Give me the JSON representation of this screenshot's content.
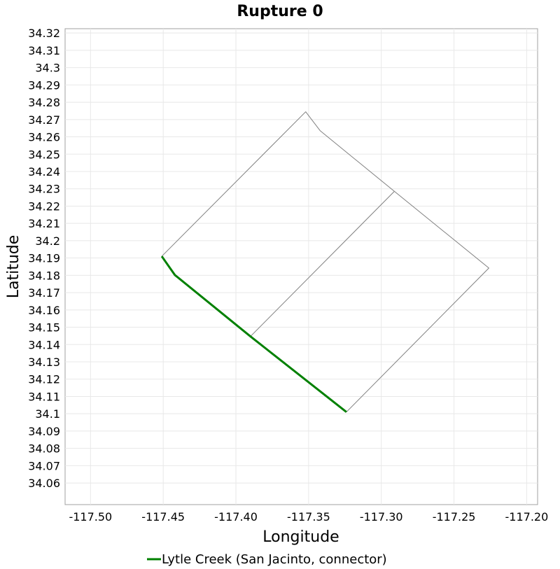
{
  "chart_data": {
    "type": "line",
    "title": "Rupture 0",
    "xlabel": "Longitude",
    "ylabel": "Latitude",
    "xlim": [
      -117.5175,
      -117.1925
    ],
    "ylim": [
      34.0475,
      34.3225
    ],
    "x_ticks": [
      -117.5,
      -117.45,
      -117.4,
      -117.35,
      -117.3,
      -117.25,
      -117.2
    ],
    "x_tick_labels": [
      "-117.50",
      "-117.45",
      "-117.40",
      "-117.35",
      "-117.30",
      "-117.25",
      "-117.20"
    ],
    "y_ticks": [
      34.06,
      34.07,
      34.08,
      34.09,
      34.1,
      34.11,
      34.12,
      34.13,
      34.14,
      34.15,
      34.16,
      34.17,
      34.18,
      34.19,
      34.2,
      34.21,
      34.22,
      34.23,
      34.24,
      34.25,
      34.26,
      34.27,
      34.28,
      34.29,
      34.3,
      34.31,
      34.32
    ],
    "y_tick_labels": [
      "34.06",
      "34.07",
      "34.08",
      "34.09",
      "34.1",
      "34.11",
      "34.12",
      "34.13",
      "34.14",
      "34.15",
      "34.16",
      "34.17",
      "34.18",
      "34.19",
      "34.2",
      "34.21",
      "34.22",
      "34.23",
      "34.24",
      "34.25",
      "34.26",
      "34.27",
      "34.28",
      "34.29",
      "34.3",
      "34.31",
      "34.32"
    ],
    "grid": true,
    "legend_position": "bottom",
    "series": [
      {
        "color": "#808080",
        "in_legend": false,
        "x": [
          -117.451,
          -117.352,
          -117.342,
          -117.291,
          -117.226,
          -117.324
        ],
        "y": [
          34.191,
          34.2745,
          34.2635,
          34.2285,
          34.1842,
          34.101
        ]
      },
      {
        "color": "#808080",
        "in_legend": false,
        "x": [
          -117.291,
          -117.39
        ],
        "y": [
          34.2285,
          34.1447
        ]
      },
      {
        "name": "Lytle Creek (San Jacinto, connector)",
        "color": "#008000",
        "in_legend": true,
        "x": [
          -117.451,
          -117.442,
          -117.39,
          -117.324
        ],
        "y": [
          34.191,
          34.1802,
          34.1447,
          34.101
        ]
      }
    ]
  }
}
